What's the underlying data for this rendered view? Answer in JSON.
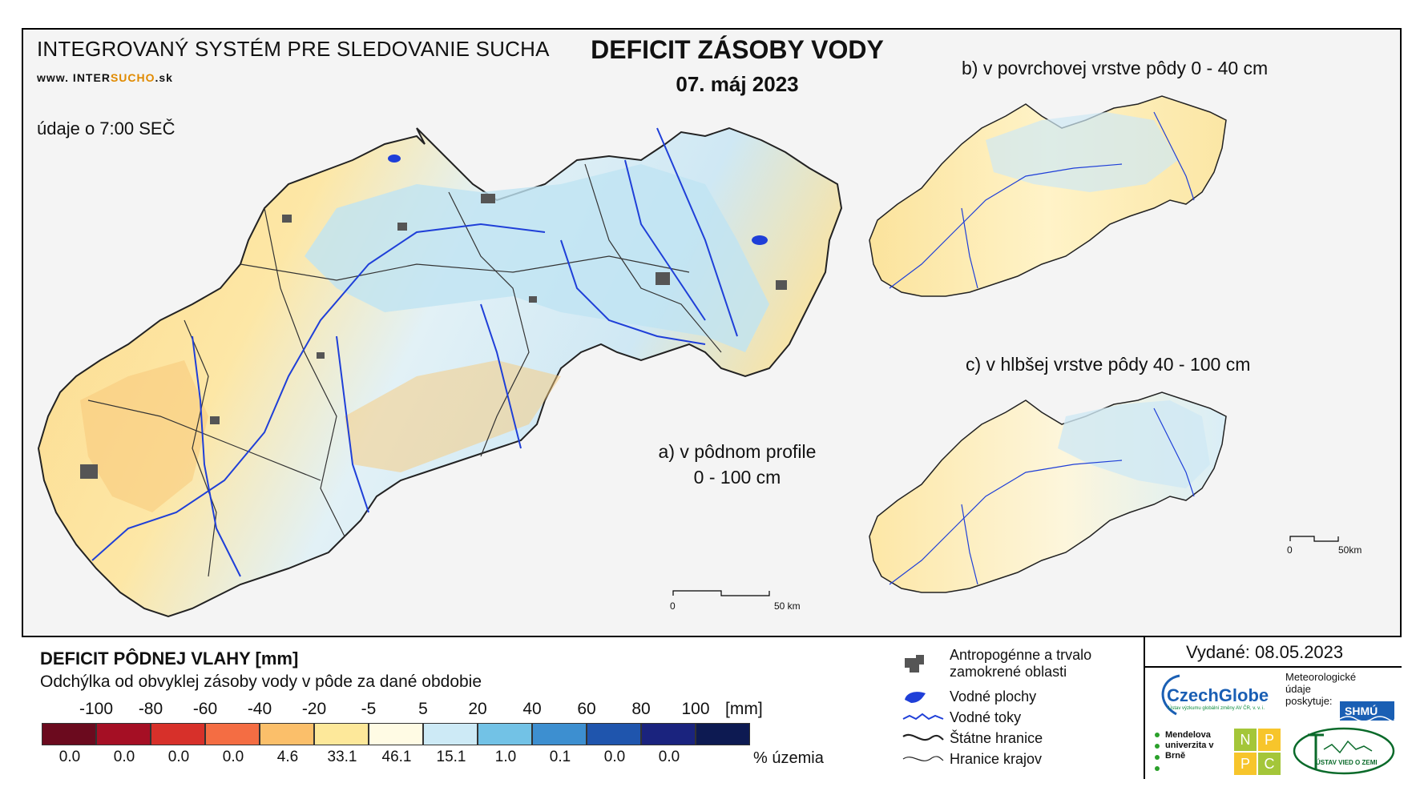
{
  "header": {
    "system_title": "INTEGROVANÝ SYSTÉM PRE SLEDOVANIE SUCHA",
    "website_prefix": "www. INTER",
    "website_accent": "SUCHO",
    "website_suffix": ".sk",
    "measurement_time": "údaje o 7:00 SEČ",
    "main_title": "DEFICIT ZÁSOBY VODY",
    "date": "07. máj 2023"
  },
  "panels": {
    "a_line1": "a) v pôdnom profile",
    "a_line2": "0 - 100 cm",
    "b": "b) v povrchovej vrstve pôdy 0 - 40 cm",
    "c": "c) v hlbšej vrstve pôdy 40 - 100 cm"
  },
  "scalebar_main": {
    "start": "0",
    "end": "50 km"
  },
  "scalebar_small": {
    "start": "0",
    "end": "50km"
  },
  "legend": {
    "title": "DEFICIT PÔDNEJ VLAHY [mm]",
    "subtitle": "Odchýlka od obvyklej zásoby vody v pôde za dané obdobie",
    "unit": "[mm]",
    "percent_unit": "% územia",
    "ticks": [
      "-100",
      "-80",
      "-60",
      "-40",
      "-20",
      "-5",
      "5",
      "20",
      "40",
      "60",
      "80",
      "100"
    ],
    "classes": [
      {
        "color": "#6b0a1e",
        "percent": "0.0"
      },
      {
        "color": "#a50f24",
        "percent": "0.0"
      },
      {
        "color": "#d7302a",
        "percent": "0.0"
      },
      {
        "color": "#f46d43",
        "percent": "0.0"
      },
      {
        "color": "#fbbf6a",
        "percent": "4.6"
      },
      {
        "color": "#fde89a",
        "percent": "33.1"
      },
      {
        "color": "#fffbe4",
        "percent": "46.1"
      },
      {
        "color": "#cdeaf6",
        "percent": "15.1"
      },
      {
        "color": "#72c2e6",
        "percent": "1.0"
      },
      {
        "color": "#3d8fd0",
        "percent": "0.1"
      },
      {
        "color": "#1f55ad",
        "percent": "0.0"
      },
      {
        "color": "#1a237e",
        "percent": "0.0"
      },
      {
        "color": "#0d1a52",
        "percent": ""
      }
    ]
  },
  "map_key": [
    {
      "icon": "urban-area-icon",
      "label": "Antropogénne a trvalo zamokrené oblasti"
    },
    {
      "icon": "water-body-icon",
      "label": "Vodné plochy"
    },
    {
      "icon": "river-icon",
      "label": "Vodné toky"
    },
    {
      "icon": "state-border-icon",
      "label": "Štátne hranice"
    },
    {
      "icon": "region-border-icon",
      "label": "Hranice krajov"
    }
  ],
  "issued": "Vydané: 08.05.2023",
  "logos": {
    "czechglobe": "CzechGlobe",
    "czechglobe_sub": "Ústav výzkumu globální změny AV ČR, v. v. i.",
    "met_data": "Meteorologické údaje poskytuje:",
    "shmu": "SHMÚ",
    "mendel": "Mendelova univerzita v Brně",
    "nppc": [
      "N",
      "P",
      "P",
      "C"
    ],
    "uvz": "ÚSTAV VIED O ZEMI"
  },
  "colors": {
    "river": "#1f3fd8",
    "border": "#222222",
    "urban": "#555555",
    "accent": "#e08a00"
  }
}
